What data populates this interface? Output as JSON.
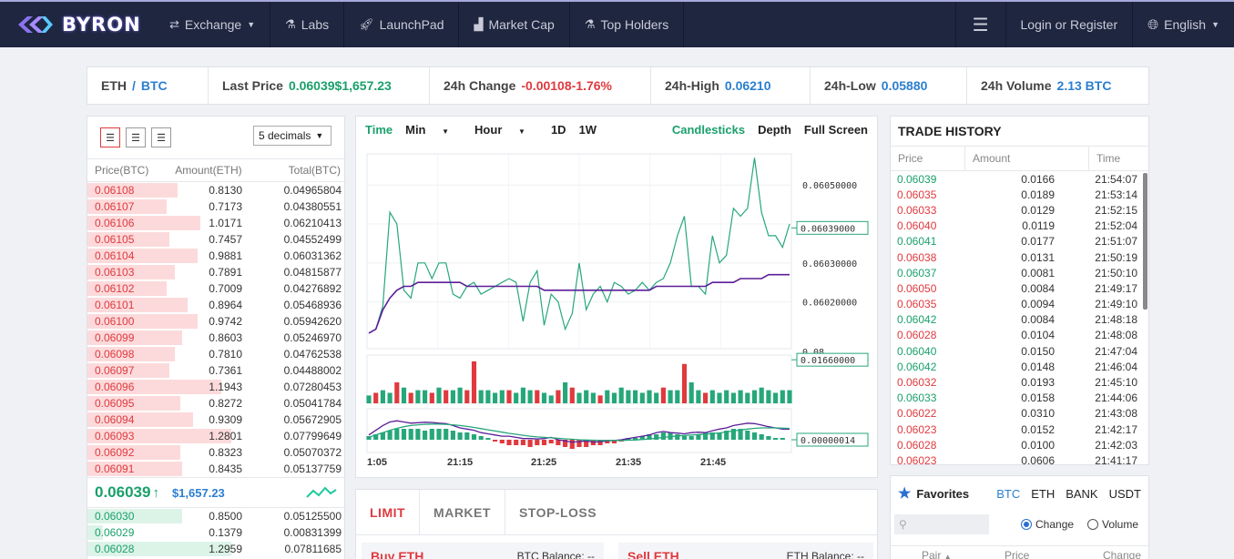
{
  "nav": {
    "brand": "BYRON",
    "items": [
      {
        "label": "Exchange",
        "icon": "shuffle-icon",
        "dropdown": true
      },
      {
        "label": "Labs",
        "icon": "flask-icon"
      },
      {
        "label": "LaunchPad",
        "icon": "rocket-icon"
      },
      {
        "label": "Market Cap",
        "icon": "bar-chart-icon"
      },
      {
        "label": "Top Holders",
        "icon": "flask-icon"
      }
    ],
    "login": "Login or Register",
    "language": "English"
  },
  "ticker": {
    "base": "ETH",
    "sep": "/",
    "quote": "BTC",
    "last_price_label": "Last Price",
    "last_price": "0.06039",
    "last_price_usd": "$1,657.23",
    "change_label": "24h Change",
    "change": "-0.00108",
    "change_pct": "-1.76%",
    "high_label": "24h-High",
    "high": "0.06210",
    "low_label": "24h-Low",
    "low": "0.05880",
    "volume_label": "24h Volume",
    "volume": "2.13 BTC"
  },
  "orderbook": {
    "decimals": "5 decimals",
    "headers": [
      "Price(BTC)",
      "Amount(ETH)",
      "Total(BTC)"
    ],
    "asks": [
      {
        "price": "0.06108",
        "amount": "0.8130",
        "total": "0.04965804",
        "depth": 0.35
      },
      {
        "price": "0.06107",
        "amount": "0.7173",
        "total": "0.04380551",
        "depth": 0.31
      },
      {
        "price": "0.06106",
        "amount": "1.0171",
        "total": "0.06210413",
        "depth": 0.44
      },
      {
        "price": "0.06105",
        "amount": "0.7457",
        "total": "0.04552499",
        "depth": 0.32
      },
      {
        "price": "0.06104",
        "amount": "0.9881",
        "total": "0.06031362",
        "depth": 0.43
      },
      {
        "price": "0.06103",
        "amount": "0.7891",
        "total": "0.04815877",
        "depth": 0.34
      },
      {
        "price": "0.06102",
        "amount": "0.7009",
        "total": "0.04276892",
        "depth": 0.31
      },
      {
        "price": "0.06101",
        "amount": "0.8964",
        "total": "0.05468936",
        "depth": 0.39
      },
      {
        "price": "0.06100",
        "amount": "0.9742",
        "total": "0.05942620",
        "depth": 0.43
      },
      {
        "price": "0.06099",
        "amount": "0.8603",
        "total": "0.05246970",
        "depth": 0.37
      },
      {
        "price": "0.06098",
        "amount": "0.7810",
        "total": "0.04762538",
        "depth": 0.34
      },
      {
        "price": "0.06097",
        "amount": "0.7361",
        "total": "0.04488002",
        "depth": 0.32
      },
      {
        "price": "0.06096",
        "amount": "1.1943",
        "total": "0.07280453",
        "depth": 0.52
      },
      {
        "price": "0.06095",
        "amount": "0.8272",
        "total": "0.05041784",
        "depth": 0.36
      },
      {
        "price": "0.06094",
        "amount": "0.9309",
        "total": "0.05672905",
        "depth": 0.41
      },
      {
        "price": "0.06093",
        "amount": "1.2801",
        "total": "0.07799649",
        "depth": 0.56
      },
      {
        "price": "0.06092",
        "amount": "0.8323",
        "total": "0.05070372",
        "depth": 0.36
      },
      {
        "price": "0.06091",
        "amount": "0.8435",
        "total": "0.05137759",
        "depth": 0.37
      }
    ],
    "last": "0.06039",
    "last_arrow": "↑",
    "last_usd": "$1,657.23",
    "bids": [
      {
        "price": "0.06030",
        "amount": "0.8500",
        "total": "0.05125500",
        "depth": 0.37
      },
      {
        "price": "0.06029",
        "amount": "0.1379",
        "total": "0.00831399",
        "depth": 0.06
      },
      {
        "price": "0.06028",
        "amount": "1.2959",
        "total": "0.07811685",
        "depth": 0.56
      }
    ]
  },
  "chart": {
    "time_label": "Time",
    "intervals": [
      "Min",
      "Hour",
      "1D",
      "1W"
    ],
    "candles_label": "Candlesticks",
    "depth_label": "Depth",
    "fullscreen_label": "Full Screen",
    "price_ticks": [
      "0.06050000",
      "0.06030000",
      "0.06020000"
    ],
    "price_current": "0.06039000",
    "vol_top": "0.08",
    "vol_current": "0.01660000",
    "macd_current": "0.00000014",
    "x_ticks": [
      "1:05",
      "21:15",
      "21:25",
      "21:35",
      "21:45"
    ],
    "colors": {
      "up": "#26a77a",
      "down": "#e0393e",
      "ma": "#5b1e9a"
    },
    "price": [
      0.06012,
      0.06013,
      0.06019,
      0.06043,
      0.0604,
      0.06023,
      0.06021,
      0.0603,
      0.0603,
      0.06026,
      0.0603,
      0.0603,
      0.06022,
      0.06021,
      0.06024,
      0.06025,
      0.06022,
      0.06023,
      0.06024,
      0.06025,
      0.06026,
      0.06025,
      0.06015,
      0.06025,
      0.06028,
      0.06014,
      0.06022,
      0.0602,
      0.06013,
      0.06017,
      0.0603,
      0.06018,
      0.06022,
      0.06024,
      0.0602,
      0.06025,
      0.06024,
      0.06022,
      0.06023,
      0.06025,
      0.06023,
      0.06025,
      0.06026,
      0.0603,
      0.06037,
      0.06042,
      0.06024,
      0.06024,
      0.06022,
      0.06037,
      0.0603,
      0.06032,
      0.06044,
      0.06042,
      0.06044,
      0.06057,
      0.06043,
      0.06037,
      0.06037,
      0.06034,
      0.0604
    ],
    "ma": [
      0.06012,
      0.06013,
      0.06018,
      0.06021,
      0.06023,
      0.06024,
      0.06024,
      0.06025,
      0.06025,
      0.06025,
      0.06025,
      0.06025,
      0.06025,
      0.06025,
      0.06024,
      0.06024,
      0.06024,
      0.06024,
      0.06024,
      0.06024,
      0.06024,
      0.06024,
      0.06024,
      0.06024,
      0.06024,
      0.06023,
      0.06023,
      0.06023,
      0.06023,
      0.06023,
      0.06023,
      0.06023,
      0.06023,
      0.06023,
      0.06023,
      0.06023,
      0.06023,
      0.06023,
      0.06023,
      0.06023,
      0.06023,
      0.06024,
      0.06024,
      0.06024,
      0.06024,
      0.06024,
      0.06024,
      0.06024,
      0.06024,
      0.06025,
      0.06025,
      0.06025,
      0.06025,
      0.06026,
      0.06026,
      0.06026,
      0.06026,
      0.06027,
      0.06027,
      0.06027,
      0.06027
    ],
    "price_range": [
      0.06008,
      0.06058
    ],
    "volumes": [
      0.003,
      0.004,
      0.005,
      0.004,
      0.008,
      0.006,
      0.004,
      0.005,
      0.005,
      0.004,
      0.006,
      0.005,
      0.005,
      0.006,
      0.005,
      0.016,
      0.005,
      0.005,
      0.004,
      0.005,
      0.005,
      0.004,
      0.006,
      0.005,
      0.005,
      0.004,
      0.003,
      0.005,
      0.008,
      0.006,
      0.004,
      0.005,
      0.004,
      0.003,
      0.005,
      0.004,
      0.006,
      0.005,
      0.005,
      0.004,
      0.005,
      0.004,
      0.006,
      0.005,
      0.005,
      0.015,
      0.008,
      0.005,
      0.004,
      0.005,
      0.004,
      0.005,
      0.004,
      0.005,
      0.004,
      0.005,
      0.006,
      0.005,
      0.004,
      0.005,
      0.005
    ],
    "vol_up": [
      true,
      false,
      true,
      true,
      false,
      true,
      false,
      true,
      true,
      false,
      true,
      false,
      true,
      true,
      false,
      false,
      true,
      true,
      true,
      true,
      false,
      true,
      true,
      true,
      false,
      true,
      true,
      false,
      true,
      false,
      true,
      true,
      true,
      false,
      true,
      true,
      true,
      true,
      true,
      true,
      true,
      true,
      false,
      true,
      true,
      false,
      true,
      true,
      false,
      true,
      true,
      true,
      true,
      true,
      true,
      true,
      true,
      true,
      true,
      true,
      true
    ],
    "macd": [
      2,
      3,
      4,
      5,
      6,
      6,
      6,
      6,
      5,
      6,
      6,
      6,
      5,
      4,
      4,
      3,
      2,
      1,
      -1,
      -2,
      -3,
      -3,
      -3,
      -4,
      -3,
      -3,
      -2,
      -3,
      -4,
      -5,
      -4,
      -4,
      -3,
      -3,
      -2,
      -2,
      -1,
      1,
      1,
      2,
      3,
      3,
      4,
      4,
      3,
      2,
      2,
      3,
      4,
      4,
      4,
      5,
      6,
      6,
      5,
      4,
      3,
      2,
      1,
      1,
      0
    ],
    "dif": [
      0.2,
      0.4,
      0.6,
      0.75,
      0.8,
      0.75,
      0.7,
      0.72,
      0.74,
      0.73,
      0.7,
      0.68,
      0.6,
      0.5,
      0.45,
      0.4,
      0.3,
      0.25,
      0.2,
      0.15,
      0.15,
      0.1,
      0.05,
      0.05,
      0.03,
      0.05,
      0.1,
      0.0,
      -0.05,
      -0.1,
      -0.08,
      -0.05,
      -0.1,
      -0.08,
      -0.05,
      -0.03,
      0.0,
      0.05,
      0.1,
      0.15,
      0.2,
      0.3,
      0.35,
      0.3,
      0.28,
      0.25,
      0.3,
      0.32,
      0.3,
      0.38,
      0.45,
      0.5,
      0.6,
      0.65,
      0.7,
      0.68,
      0.62,
      0.55,
      0.5,
      0.45,
      0.45
    ],
    "dea": [
      0.1,
      0.2,
      0.3,
      0.4,
      0.48,
      0.55,
      0.6,
      0.63,
      0.65,
      0.66,
      0.66,
      0.65,
      0.63,
      0.6,
      0.56,
      0.52,
      0.47,
      0.42,
      0.37,
      0.32,
      0.27,
      0.23,
      0.19,
      0.15,
      0.12,
      0.1,
      0.08,
      0.06,
      0.04,
      0.02,
      0.0,
      -0.01,
      -0.02,
      -0.03,
      -0.03,
      -0.03,
      -0.03,
      -0.02,
      -0.01,
      0.01,
      0.03,
      0.06,
      0.1,
      0.13,
      0.16,
      0.18,
      0.2,
      0.22,
      0.24,
      0.26,
      0.29,
      0.33,
      0.37,
      0.41,
      0.45,
      0.48,
      0.5,
      0.5,
      0.5,
      0.49,
      0.48
    ]
  },
  "trade_history": {
    "title": "TRADE HISTORY",
    "headers": [
      "Price",
      "Amount",
      "Time"
    ],
    "rows": [
      {
        "price": "0.06039",
        "amount": "0.0166",
        "time": "21:54:07",
        "side": "buy"
      },
      {
        "price": "0.06035",
        "amount": "0.0189",
        "time": "21:53:14",
        "side": "sell"
      },
      {
        "price": "0.06033",
        "amount": "0.0129",
        "time": "21:52:15",
        "side": "sell"
      },
      {
        "price": "0.06040",
        "amount": "0.0119",
        "time": "21:52:04",
        "side": "sell"
      },
      {
        "price": "0.06041",
        "amount": "0.0177",
        "time": "21:51:07",
        "side": "buy"
      },
      {
        "price": "0.06038",
        "amount": "0.0131",
        "time": "21:50:19",
        "side": "sell"
      },
      {
        "price": "0.06037",
        "amount": "0.0081",
        "time": "21:50:10",
        "side": "buy"
      },
      {
        "price": "0.06050",
        "amount": "0.0084",
        "time": "21:49:17",
        "side": "sell"
      },
      {
        "price": "0.06035",
        "amount": "0.0094",
        "time": "21:49:10",
        "side": "sell"
      },
      {
        "price": "0.06042",
        "amount": "0.0084",
        "time": "21:48:18",
        "side": "buy"
      },
      {
        "price": "0.06028",
        "amount": "0.0104",
        "time": "21:48:08",
        "side": "sell"
      },
      {
        "price": "0.06040",
        "amount": "0.0150",
        "time": "21:47:04",
        "side": "buy"
      },
      {
        "price": "0.06042",
        "amount": "0.0148",
        "time": "21:46:04",
        "side": "buy"
      },
      {
        "price": "0.06032",
        "amount": "0.0193",
        "time": "21:45:10",
        "side": "sell"
      },
      {
        "price": "0.06033",
        "amount": "0.0158",
        "time": "21:44:06",
        "side": "buy"
      },
      {
        "price": "0.06022",
        "amount": "0.0310",
        "time": "21:43:08",
        "side": "sell"
      },
      {
        "price": "0.06023",
        "amount": "0.0152",
        "time": "21:42:17",
        "side": "sell"
      },
      {
        "price": "0.06028",
        "amount": "0.0100",
        "time": "21:42:03",
        "side": "sell"
      },
      {
        "price": "0.06023",
        "amount": "0.0606",
        "time": "21:41:17",
        "side": "sell"
      }
    ]
  },
  "order_form": {
    "tabs": [
      "LIMIT",
      "MARKET",
      "STOP-LOSS"
    ],
    "buy_title": "Buy ETH",
    "buy_balance": "BTC Balance: --",
    "sell_title": "Sell ETH",
    "sell_balance": "ETH Balance: --"
  },
  "favorites": {
    "title": "Favorites",
    "markets": [
      "BTC",
      "ETH",
      "BANK",
      "USDT"
    ],
    "sort_change": "Change",
    "sort_volume": "Volume",
    "headers": [
      "Pair",
      "Price",
      "Change"
    ]
  }
}
